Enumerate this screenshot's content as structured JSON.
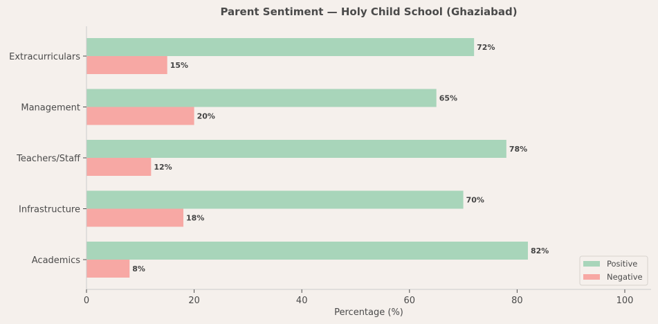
{
  "chart_data": {
    "type": "bar",
    "orientation": "horizontal",
    "title": "Parent Sentiment — Holy Child School (Ghaziabad)",
    "xlabel": "Percentage (%)",
    "ylabel": "",
    "categories": [
      "Academics",
      "Infrastructure",
      "Teachers/Staff",
      "Management",
      "Extracurriculars"
    ],
    "series": [
      {
        "name": "Positive",
        "values": [
          82,
          70,
          78,
          65,
          72
        ],
        "color": "#a8d5ba"
      },
      {
        "name": "Negative",
        "values": [
          8,
          18,
          12,
          20,
          15
        ],
        "color": "#f7a8a4"
      }
    ],
    "value_label_suffix": "%",
    "xlim": [
      0,
      105
    ],
    "xticks": [
      0,
      20,
      40,
      60,
      80,
      100
    ],
    "grid": false,
    "legend_position": "lower-right"
  }
}
